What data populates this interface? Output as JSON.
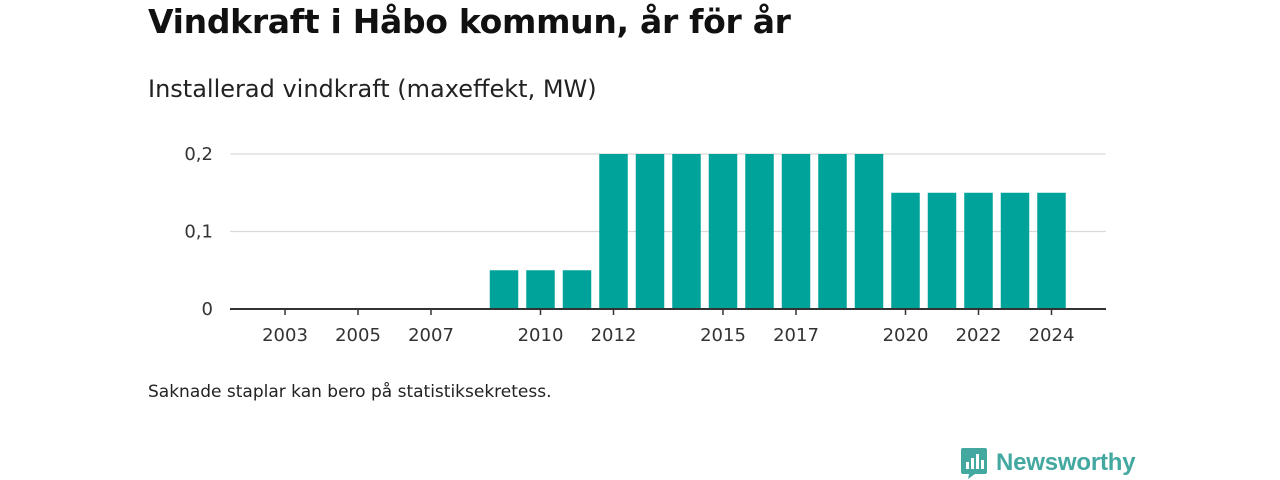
{
  "title": "Vindkraft i Håbo kommun, år för år",
  "subtitle": "Installerad vindkraft (maxeffekt, MW)",
  "note": "Saknade staplar kan bero på statistiksekretess.",
  "logo_text": "Newsworthy",
  "colors": {
    "bar": "#00a39a",
    "logo": "#43a8a0",
    "grid": "#d9d9d9",
    "axis": "#333333"
  },
  "chart_data": {
    "type": "bar",
    "categories": [
      "2002",
      "2003",
      "2004",
      "2005",
      "2006",
      "2007",
      "2008",
      "2009",
      "2010",
      "2011",
      "2012",
      "2013",
      "2014",
      "2015",
      "2016",
      "2017",
      "2018",
      "2019",
      "2020",
      "2021",
      "2022",
      "2023",
      "2024"
    ],
    "values": [
      null,
      null,
      null,
      null,
      null,
      null,
      null,
      0.05,
      0.05,
      0.05,
      0.2,
      0.2,
      0.2,
      0.2,
      0.2,
      0.2,
      0.2,
      0.2,
      0.15,
      0.15,
      0.15,
      0.15,
      0.15
    ],
    "x_tick_labels": [
      "2003",
      "2005",
      "2007",
      "2010",
      "2012",
      "2015",
      "2017",
      "2020",
      "2022",
      "2024"
    ],
    "y_ticks": [
      0,
      0.1,
      0.2
    ],
    "y_tick_labels": [
      "0",
      "0,1",
      "0,2"
    ],
    "ylim": [
      0,
      0.2
    ],
    "grid": true,
    "title": "Vindkraft i Håbo kommun, år för år",
    "ylabel": "Installerad vindkraft (maxeffekt, MW)",
    "xlabel": ""
  }
}
